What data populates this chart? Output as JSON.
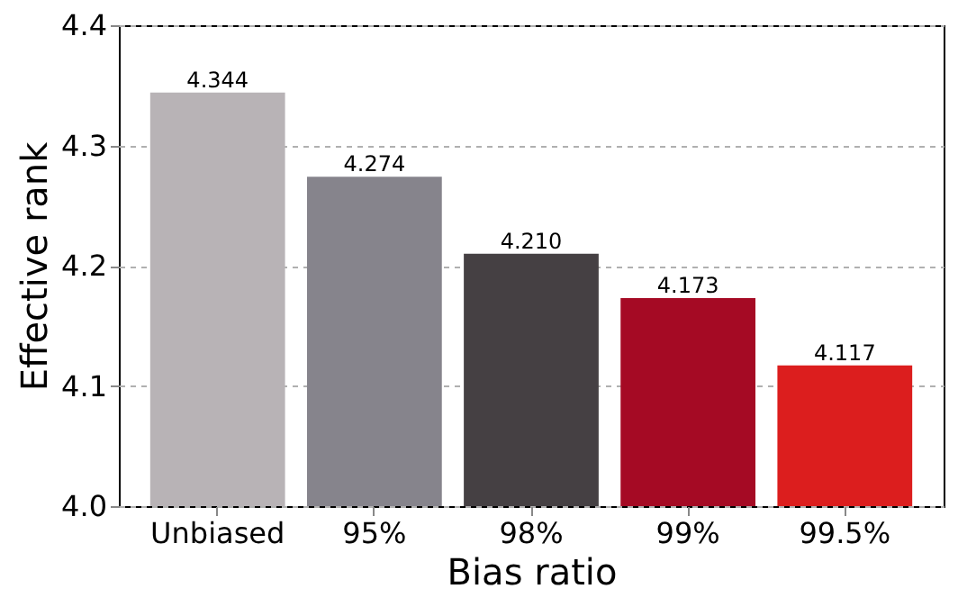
{
  "chart_data": {
    "type": "bar",
    "xlabel": "Bias ratio",
    "ylabel": "Effective rank",
    "categories": [
      "Unbiased",
      "95%",
      "98%",
      "99%",
      "99.5%"
    ],
    "values": [
      4.344,
      4.274,
      4.21,
      4.173,
      4.117
    ],
    "colors": [
      "#b8b3b6",
      "#86848c",
      "#454043",
      "#a50a24",
      "#dc1e1e"
    ],
    "value_labels": [
      "4.344",
      "4.274",
      "4.210",
      "4.173",
      "4.117"
    ],
    "ylim": [
      4.0,
      4.4
    ],
    "yticks": [
      {
        "value": 4.0,
        "label": "4.0"
      },
      4.1,
      4.2,
      4.3,
      4.4
    ],
    "grid": "y"
  }
}
